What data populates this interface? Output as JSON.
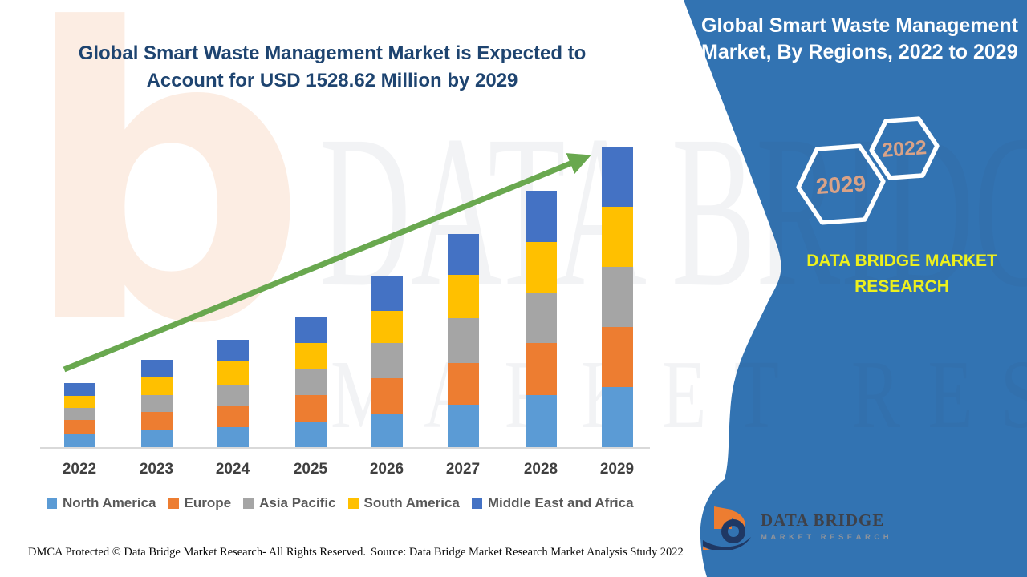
{
  "header": {
    "title": "Global Smart Waste Management Market is Expected to Account for USD 1528.62 Million by 2029"
  },
  "panel": {
    "title": "Global Smart Waste Management Market, By Regions, 2022 to 2029",
    "brand": "DATA BRIDGE MARKET RESEARCH",
    "background_color": "#3273B2",
    "hexagon_years": {
      "front": "2029",
      "back": "2022"
    },
    "hexagon_text_color": "#D9A287"
  },
  "watermark": {
    "logo_letter": "b",
    "line1": "DATA BRIDGE",
    "line2": "MARKET RESEARCH"
  },
  "chart_data": {
    "type": "bar",
    "stacked": true,
    "title": "Global Smart Waste Management Market is Expected to Account for USD 1528.62 Million by 2029",
    "xlabel": "",
    "ylabel": "",
    "units": "relative height units (no y-axis values shown in figure)",
    "grid": false,
    "legend_position": "bottom",
    "trend_arrow_color": "#69A84F",
    "categories": [
      "2022",
      "2023",
      "2024",
      "2025",
      "2026",
      "2027",
      "2028",
      "2029"
    ],
    "series": [
      {
        "name": "North America",
        "color": "#5B9BD5",
        "values": [
          16,
          21,
          25,
          32,
          41,
          53,
          65,
          75
        ]
      },
      {
        "name": "Europe",
        "color": "#ED7D31",
        "values": [
          18,
          23,
          27,
          33,
          45,
          52,
          65,
          75
        ]
      },
      {
        "name": "Asia Pacific",
        "color": "#A5A5A5",
        "values": [
          15,
          21,
          26,
          32,
          44,
          56,
          63,
          75
        ]
      },
      {
        "name": "South America",
        "color": "#FFC000",
        "values": [
          15,
          22,
          29,
          33,
          40,
          54,
          63,
          75
        ]
      },
      {
        "name": "Middle East and Africa",
        "color": "#4472C4",
        "values": [
          16,
          22,
          27,
          32,
          44,
          51,
          64,
          75
        ]
      }
    ],
    "totals_note": "stacked totals rise steadily from 2022 to 2029; 2029 total corresponds to USD 1528.62 Million"
  },
  "footer": {
    "dmca": "DMCA Protected © Data Bridge Market Research- All Rights Reserved.",
    "source": "Source: Data Bridge Market Research Market Analysis Study 2022"
  },
  "logo": {
    "title": "DATA BRIDGE",
    "subtitle": "MARKET RESEARCH"
  }
}
